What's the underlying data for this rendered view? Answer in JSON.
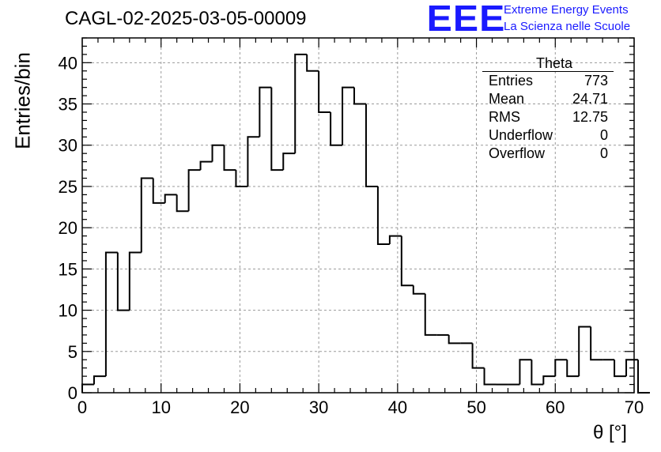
{
  "title": "CAGL-02-2025-03-05-00009",
  "logo": {
    "mark": "EEE",
    "line1": "Extreme Energy Events",
    "line2": "La Scienza nelle Scuole",
    "color": "#1a1aff"
  },
  "stats_box": {
    "title": "Theta",
    "rows": [
      {
        "label": "Entries",
        "value": "773"
      },
      {
        "label": "Mean",
        "value": "24.71"
      },
      {
        "label": "RMS",
        "value": "12.75"
      },
      {
        "label": "Underflow",
        "value": "0"
      },
      {
        "label": "Overflow",
        "value": "0"
      }
    ]
  },
  "chart_data": {
    "type": "bar",
    "histogram": true,
    "xlabel": "θ [°]",
    "ylabel": "Entries/bin",
    "xlim": [
      0,
      70
    ],
    "ylim": [
      0,
      43
    ],
    "xticks": [
      0,
      10,
      20,
      30,
      40,
      50,
      60,
      70
    ],
    "yticks": [
      0,
      5,
      10,
      15,
      20,
      25,
      30,
      35,
      40
    ],
    "grid": true,
    "bin_width": 1.5,
    "bin_start": 0,
    "values": [
      1,
      2,
      17,
      10,
      17,
      26,
      23,
      24,
      22,
      27,
      28,
      30,
      27,
      25,
      31,
      37,
      27,
      29,
      41,
      39,
      34,
      30,
      37,
      35,
      25,
      18,
      19,
      13,
      12,
      7,
      7,
      6,
      6,
      3,
      1,
      1,
      1,
      4,
      1,
      2,
      4,
      2,
      8,
      4,
      4,
      2,
      4,
      0
    ],
    "line_color": "#000000"
  }
}
